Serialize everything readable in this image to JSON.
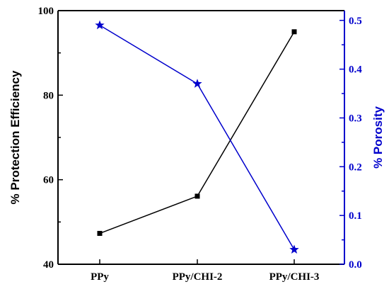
{
  "chart_data": {
    "type": "line",
    "categories": [
      "PPy",
      "PPy/CHI-2",
      "PPy/CHI-3"
    ],
    "title": "",
    "xlabel": "",
    "series": [
      {
        "axis": "left",
        "marker": "square",
        "values": [
          47.3,
          56.1,
          95.0
        ]
      },
      {
        "axis": "right",
        "marker": "star",
        "values": [
          0.49,
          0.37,
          0.03
        ]
      }
    ],
    "left_axis": {
      "label": "% Protection Efficiency",
      "ylim": [
        40,
        100
      ],
      "ticks": [
        40,
        60,
        80,
        100
      ],
      "color": "#000000"
    },
    "right_axis": {
      "label": "% Porosity",
      "ylim": [
        0.0,
        0.52
      ],
      "ticks": [
        0.0,
        0.1,
        0.2,
        0.3,
        0.4,
        0.5
      ],
      "tick_labels": [
        "0.0",
        "0.1",
        "0.2",
        "0.3",
        "0.4",
        "0.5"
      ],
      "color": "#0000cc"
    },
    "grid": false,
    "legend": "none",
    "colors": {
      "left_series": "#000000",
      "right_series": "#0000cc",
      "axis_left": "#000000",
      "axis_right": "#0000cc"
    }
  }
}
